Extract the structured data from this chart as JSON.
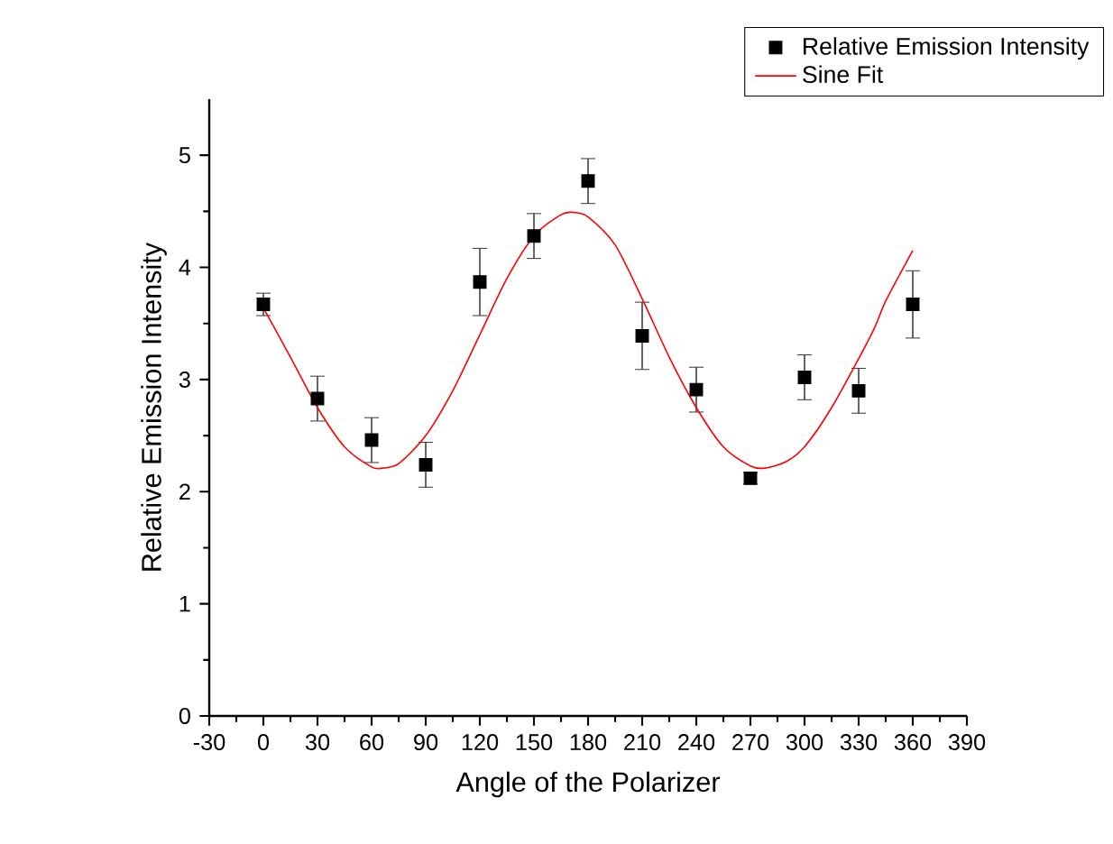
{
  "chart_data": {
    "type": "scatter",
    "xlabel": "Angle of the Polarizer",
    "ylabel": "Relative Emission Intensity",
    "x": [
      0,
      30,
      60,
      90,
      120,
      150,
      180,
      210,
      240,
      270,
      300,
      330,
      360
    ],
    "series": [
      {
        "name": "Relative Emission Intensity",
        "color": "#000000",
        "marker": "square",
        "values": [
          3.67,
          2.83,
          2.46,
          2.24,
          3.87,
          4.28,
          4.77,
          3.39,
          2.91,
          2.12,
          3.02,
          2.9,
          3.67
        ],
        "errors": [
          0.1,
          0.2,
          0.2,
          0.2,
          0.3,
          0.2,
          0.2,
          0.3,
          0.2,
          0.05,
          0.2,
          0.2,
          0.3
        ]
      },
      {
        "name": "Sine Fit",
        "type": "line",
        "color": "#ff0000",
        "marker": "none",
        "line_style": "solid",
        "x": [
          0,
          15,
          30,
          45,
          60,
          66,
          75,
          90,
          105,
          120,
          135,
          150,
          165,
          172,
          180,
          195,
          210,
          225,
          240,
          255,
          270,
          278,
          290,
          300,
          315,
          337,
          345,
          360
        ],
        "values": [
          3.64,
          3.2,
          2.75,
          2.4,
          2.22,
          2.21,
          2.25,
          2.5,
          2.9,
          3.4,
          3.9,
          4.28,
          4.47,
          4.49,
          4.45,
          4.2,
          3.72,
          3.2,
          2.75,
          2.4,
          2.23,
          2.21,
          2.27,
          2.4,
          2.75,
          3.4,
          3.7,
          4.15
        ]
      }
    ],
    "xlim": [
      -30,
      390
    ],
    "xticks": [
      -30,
      0,
      30,
      60,
      90,
      120,
      150,
      180,
      210,
      240,
      270,
      300,
      330,
      360,
      390
    ],
    "ylim": [
      0,
      5.5
    ],
    "yticks": [
      0,
      1,
      2,
      3,
      4,
      5
    ],
    "grid": false,
    "legend": "top right"
  }
}
